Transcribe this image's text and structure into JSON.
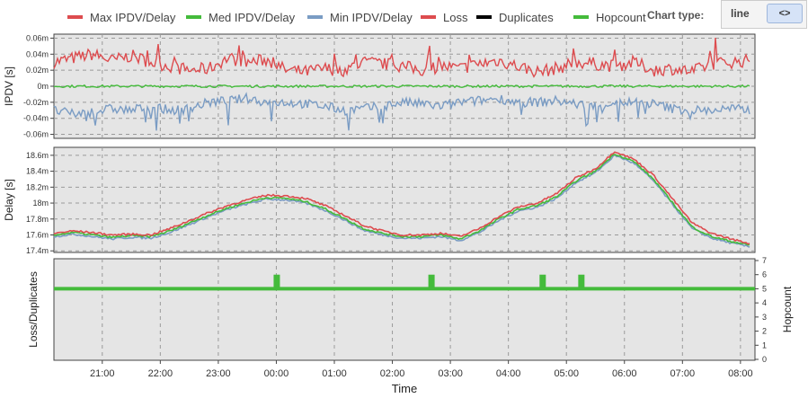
{
  "legend": [
    {
      "name": "Max IPDV/Delay",
      "color": "#dd4c4f"
    },
    {
      "name": "Med IPDV/Delay",
      "color": "#44bb3b"
    },
    {
      "name": "Min IPDV/Delay",
      "color": "#7a9cc4"
    },
    {
      "name": "Loss",
      "color": "#dd4c4f"
    },
    {
      "name": "Duplicates",
      "color": "#000000"
    },
    {
      "name": "Hopcount",
      "color": "#44bb3b"
    }
  ],
  "controls": {
    "chart_type_label": "Chart type:",
    "chart_type_value": "line",
    "toggle_label": "<>"
  },
  "chart_data": [
    {
      "type": "line",
      "panel": "ipdv",
      "ylabel": "IPDV [s]",
      "yticks": [
        "0.06m",
        "0.04m",
        "0.02m",
        "0m",
        "-0.02m",
        "-0.04m",
        "-0.06m"
      ],
      "ylim": [
        -0.065,
        0.065
      ],
      "x": [
        "20:10",
        "20:30",
        "20:50",
        "21:10",
        "21:30",
        "21:50",
        "22:10",
        "22:30",
        "22:50",
        "23:10",
        "23:30",
        "23:50",
        "00:10",
        "00:30",
        "00:50",
        "01:10",
        "01:30",
        "01:50",
        "02:10",
        "02:30",
        "02:50",
        "03:10",
        "03:30",
        "03:50",
        "04:10",
        "04:30",
        "04:50",
        "05:10",
        "05:30",
        "05:50",
        "06:10",
        "06:30",
        "06:50",
        "07:10",
        "07:30",
        "07:50",
        "08:10"
      ],
      "series": [
        {
          "name": "Max IPDV/Delay",
          "values": [
            0.03,
            0.035,
            0.04,
            0.032,
            0.038,
            0.03,
            0.025,
            0.02,
            0.022,
            0.035,
            0.03,
            0.033,
            0.02,
            0.018,
            0.022,
            0.02,
            0.03,
            0.028,
            0.025,
            0.02,
            0.025,
            0.022,
            0.028,
            0.032,
            0.025,
            0.018,
            0.022,
            0.03,
            0.028,
            0.025,
            0.03,
            0.02,
            0.022,
            0.018,
            0.028,
            0.03,
            0.032
          ]
        },
        {
          "name": "Med IPDV/Delay",
          "values": [
            0,
            0,
            0,
            0,
            0,
            0,
            0,
            0,
            0,
            0,
            0,
            0,
            0,
            0,
            0,
            0,
            0,
            0,
            0,
            0,
            0,
            0,
            0,
            0,
            0,
            0,
            0,
            0,
            0,
            0,
            0,
            0,
            0,
            0,
            0,
            0,
            0
          ]
        },
        {
          "name": "Min IPDV/Delay",
          "values": [
            -0.03,
            -0.035,
            -0.032,
            -0.028,
            -0.03,
            -0.025,
            -0.03,
            -0.028,
            -0.02,
            -0.018,
            -0.015,
            -0.02,
            -0.02,
            -0.022,
            -0.025,
            -0.03,
            -0.028,
            -0.025,
            -0.02,
            -0.022,
            -0.025,
            -0.02,
            -0.018,
            -0.015,
            -0.02,
            -0.02,
            -0.018,
            -0.022,
            -0.025,
            -0.02,
            -0.02,
            -0.022,
            -0.028,
            -0.03,
            -0.03,
            -0.028,
            -0.03
          ]
        }
      ]
    },
    {
      "type": "line",
      "panel": "delay",
      "ylabel": "Delay [s]",
      "yticks": [
        "18.6m",
        "18.4m",
        "18.2m",
        "18m",
        "17.8m",
        "17.6m",
        "17.4m"
      ],
      "ylim": [
        17.38,
        18.7
      ],
      "x": [
        "20:10",
        "20:30",
        "20:50",
        "21:10",
        "21:30",
        "21:50",
        "22:10",
        "22:30",
        "22:50",
        "23:10",
        "23:30",
        "23:50",
        "00:10",
        "00:30",
        "00:50",
        "01:10",
        "01:30",
        "01:50",
        "02:10",
        "02:30",
        "02:50",
        "03:10",
        "03:30",
        "03:50",
        "04:10",
        "04:30",
        "04:50",
        "05:10",
        "05:30",
        "05:50",
        "06:10",
        "06:30",
        "06:50",
        "07:10",
        "07:30",
        "07:50",
        "08:10"
      ],
      "series": [
        {
          "name": "Max IPDV/Delay",
          "values": [
            17.62,
            17.65,
            17.63,
            17.6,
            17.61,
            17.6,
            17.68,
            17.78,
            17.88,
            17.97,
            18.04,
            18.1,
            18.09,
            18.06,
            17.97,
            17.85,
            17.72,
            17.65,
            17.6,
            17.6,
            17.62,
            17.58,
            17.68,
            17.83,
            17.95,
            18.0,
            18.12,
            18.32,
            18.43,
            18.65,
            18.55,
            18.35,
            18.05,
            17.75,
            17.62,
            17.55,
            17.49
          ]
        },
        {
          "name": "Med IPDV/Delay",
          "values": [
            17.6,
            17.63,
            17.6,
            17.57,
            17.59,
            17.58,
            17.65,
            17.75,
            17.85,
            17.94,
            18.01,
            18.07,
            18.06,
            18.02,
            17.93,
            17.81,
            17.68,
            17.62,
            17.58,
            17.58,
            17.6,
            17.55,
            17.65,
            17.8,
            17.92,
            17.97,
            18.08,
            18.28,
            18.4,
            18.62,
            18.52,
            18.3,
            18.0,
            17.7,
            17.58,
            17.52,
            17.47
          ]
        },
        {
          "name": "Min IPDV/Delay",
          "values": [
            17.58,
            17.61,
            17.58,
            17.55,
            17.57,
            17.56,
            17.63,
            17.73,
            17.83,
            17.92,
            17.99,
            18.05,
            18.04,
            18.0,
            17.91,
            17.79,
            17.66,
            17.6,
            17.56,
            17.56,
            17.58,
            17.53,
            17.63,
            17.78,
            17.9,
            17.95,
            18.06,
            18.26,
            18.38,
            18.6,
            18.5,
            18.28,
            17.98,
            17.68,
            17.56,
            17.5,
            17.45
          ]
        }
      ]
    },
    {
      "type": "line",
      "panel": "loss",
      "ylabel": "Loss/Duplicates",
      "y2label": "Hopcount",
      "y2ticks": [
        "7",
        "6",
        "5",
        "4",
        "3",
        "2",
        "1",
        "0"
      ],
      "y2lim": [
        0,
        7
      ],
      "xlabel": "Time",
      "xticks": [
        "21:00",
        "22:00",
        "23:00",
        "00:00",
        "01:00",
        "02:00",
        "03:00",
        "04:00",
        "05:00",
        "06:00",
        "07:00",
        "08:00"
      ],
      "series": [
        {
          "name": "Hopcount",
          "baseline": 5,
          "spikes": [
            {
              "time": "00:00",
              "value": 6
            },
            {
              "time": "02:40",
              "value": 6
            },
            {
              "time": "04:35",
              "value": 6
            },
            {
              "time": "05:15",
              "value": 6
            }
          ]
        }
      ]
    }
  ]
}
